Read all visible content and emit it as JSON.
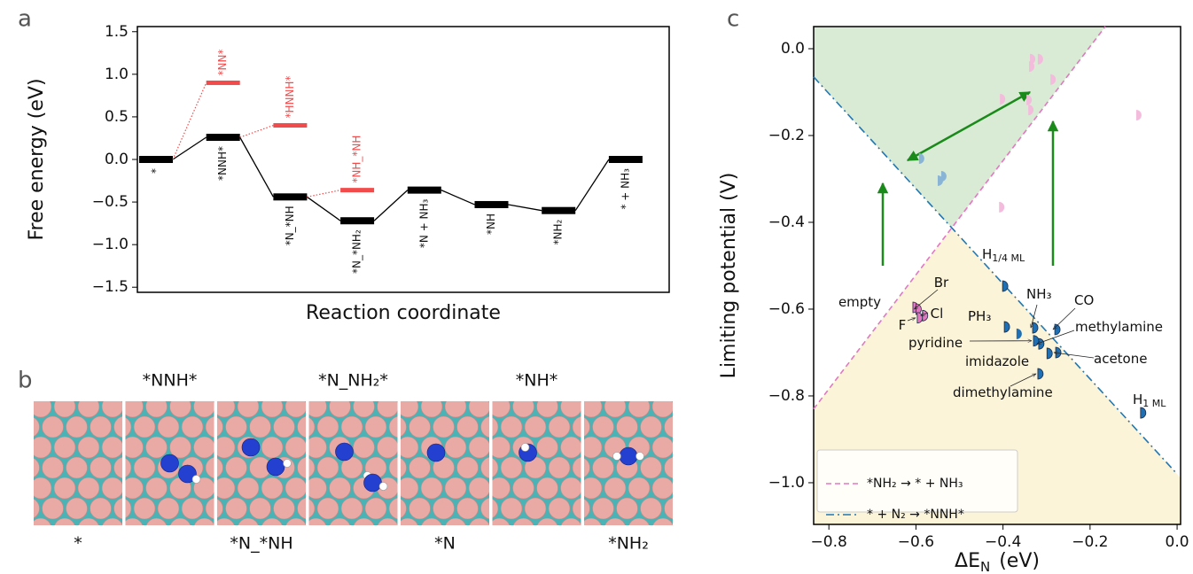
{
  "panel_labels": [
    "a",
    "b",
    "c"
  ],
  "chart_data": [
    {
      "type": "energy_diagram",
      "y_label": "Free energy  (eV)",
      "x_label": "Reaction coordinate",
      "ylim": [
        -1.56,
        1.56
      ],
      "yticks": [
        {
          "value": -1.5,
          "label": "−1.5"
        },
        {
          "value": -1.0,
          "label": "−1.0"
        },
        {
          "value": -0.5,
          "label": "−0.5"
        },
        {
          "value": 0,
          "label": "0.0"
        },
        {
          "value": 0.5,
          "label": "0.5"
        },
        {
          "value": 1.0,
          "label": "1.0"
        },
        {
          "value": 1.5,
          "label": "1.5"
        }
      ],
      "categories": [
        "*",
        "*NNH*",
        "*N_*NH",
        "*N_*NH₂",
        "*N + NH₃",
        "*NH",
        "*NH₂",
        "* + NH₃"
      ],
      "values": [
        0,
        0.26,
        -0.44,
        -0.72,
        -0.36,
        -0.53,
        -0.6,
        0
      ],
      "color": "#000000",
      "side_values": [
        null,
        0.9,
        0.4,
        -0.36,
        null,
        null,
        null,
        null
      ],
      "side_labels": [
        null,
        "*NN*",
        "*HNNH*",
        "*NH_*NH",
        null,
        null,
        null,
        null
      ],
      "side_color": "#f24b4b"
    },
    {
      "type": "scatter",
      "x_label": "ΔE",
      "x_label_sub": "N",
      "x_label_unit": "(eV)",
      "y_label": "Limiting potential (V)",
      "xlim": [
        -0.835,
        0.008
      ],
      "ylim": [
        -1.096,
        0.051
      ],
      "xticks": [
        {
          "value": -0.8,
          "label": "−0.8"
        },
        {
          "value": -0.6,
          "label": "−0.6"
        },
        {
          "value": -0.4,
          "label": "−0.4"
        },
        {
          "value": -0.2,
          "label": "−0.2"
        },
        {
          "value": 0,
          "label": "0.0"
        }
      ],
      "yticks": [
        {
          "value": -1.0,
          "label": "−1.0"
        },
        {
          "value": -0.8,
          "label": "−0.8"
        },
        {
          "value": -0.6,
          "label": "−0.6"
        },
        {
          "value": -0.4,
          "label": "−0.4"
        },
        {
          "value": -0.2,
          "label": "−0.2"
        },
        {
          "value": 0,
          "label": "0.0"
        }
      ],
      "series": [
        {
          "name": "*NH₂ → * + NH₃",
          "color": "#e377c2",
          "style": "dashed",
          "x": [
            -0.835,
            -0.165
          ],
          "values": [
            -0.83,
            0.051
          ]
        },
        {
          "name": "* + N₂ → *NNH*",
          "color": "#1f77b4",
          "style": "dashdot",
          "x": [
            -0.835,
            0
          ],
          "values": [
            -0.065,
            -0.98
          ]
        }
      ],
      "region_colors": [
        "#d9ebd5",
        "#fcf4d8"
      ],
      "legend": "lower left",
      "points": {
        "x": [
          -0.607,
          -0.6,
          -0.597,
          -0.585,
          -0.401,
          -0.332,
          -0.281,
          -0.397,
          -0.33,
          -0.318,
          -0.299,
          -0.279,
          -0.32,
          -0.084,
          -0.369,
          -0.593,
          -0.55,
          -0.542,
          -0.34,
          -0.338,
          -0.32,
          -0.407,
          -0.346,
          -0.342,
          -0.291,
          -0.094,
          -0.409
        ],
        "values": [
          -0.596,
          -0.6,
          -0.62,
          -0.615,
          -0.547,
          -0.643,
          -0.647,
          -0.641,
          -0.673,
          -0.68,
          -0.702,
          -0.7,
          -0.749,
          -0.839,
          -0.657,
          -0.253,
          -0.304,
          -0.294,
          -0.041,
          -0.024,
          -0.024,
          -0.116,
          -0.118,
          -0.141,
          -0.071,
          -0.153,
          -0.365
        ],
        "colors": [
          "#e377c2",
          "#e377c2",
          "#e377c2",
          "#e377c2",
          "#1f6fb4",
          "#1f6fb4",
          "#1f6fb4",
          "#1f6fb4",
          "#1f6fb4",
          "#1f6fb4",
          "#1f6fb4",
          "#1f6fb4",
          "#1f6fb4",
          "#1f6fb4",
          "#1f6fb4",
          "#8ab4d6",
          "#8ab4d6",
          "#8ab4d6",
          "#f3bcdc",
          "#f3bcdc",
          "#f3bcdc",
          "#f3bcdc",
          "#f3bcdc",
          "#f3bcdc",
          "#f3bcdc",
          "#f3bcdc",
          "#f3bcdc"
        ],
        "labels": [
          "empty",
          "Br",
          "F",
          "Cl",
          "H",
          "NH₃",
          "CO",
          "PH₃",
          "pyridine",
          "methylamine",
          "imidazole",
          "acetone",
          "dimethylamine",
          "H",
          null,
          null,
          null,
          null,
          null,
          null,
          null,
          null,
          null,
          null,
          null,
          null,
          null
        ],
        "label_subs": [
          null,
          null,
          null,
          null,
          "1/4 ML",
          null,
          null,
          null,
          null,
          null,
          null,
          null,
          null,
          "1 ML",
          null,
          null,
          null,
          null,
          null,
          null,
          null,
          null,
          null,
          null,
          null,
          null,
          null
        ]
      }
    }
  ],
  "panel_b": {
    "top_labels": [
      null,
      "*NNH*",
      null,
      "*N_NH₂*",
      null,
      "*NH*",
      null
    ],
    "bottom_labels": [
      "*",
      null,
      "*N_*NH",
      null,
      "*N",
      null,
      "*NH₂"
    ]
  }
}
